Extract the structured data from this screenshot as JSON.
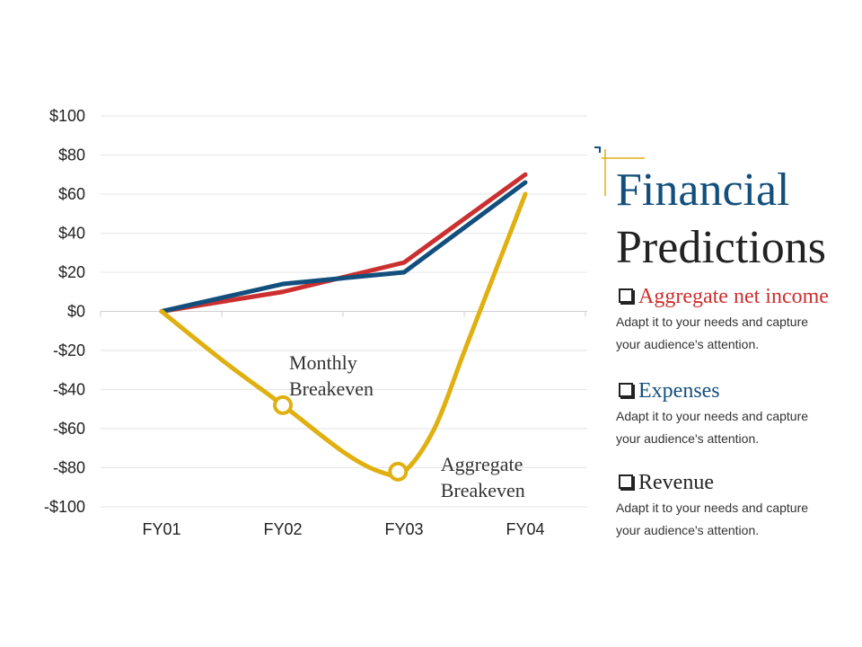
{
  "colors": {
    "revenue": "#134f7c",
    "net_income": "#cc2f2f",
    "expenses": "#e0b010",
    "title_blue": "#134f7c",
    "title_dark": "#222222",
    "gold": "#e0b010",
    "grid": "#e6e6e6"
  },
  "title": {
    "line1": "Financial",
    "line2": "Predictions"
  },
  "legend": [
    {
      "key": "net_income",
      "label": "Aggregate net income",
      "description": "Adapt it to your needs and capture your audience's attention.",
      "icon": "checkbox-icon"
    },
    {
      "key": "expenses",
      "label": "Expenses",
      "description": "Adapt it to your needs and capture your audience's attention.",
      "icon": "checkbox-icon"
    },
    {
      "key": "revenue",
      "label": "Revenue",
      "description": "Adapt it to your needs and capture your audience's attention.",
      "icon": "checkbox-icon"
    }
  ],
  "chart_data": {
    "type": "line",
    "categories": [
      "FY01",
      "FY02",
      "FY03",
      "FY04"
    ],
    "ylim": [
      -100,
      100
    ],
    "y_ticks": [
      100,
      80,
      60,
      40,
      20,
      0,
      -20,
      -40,
      -60,
      -80,
      -100
    ],
    "y_tick_labels": [
      "$100",
      "$80",
      "$60",
      "$40",
      "$20",
      "$0",
      "-$20",
      "-$40",
      "-$60",
      "-$80",
      "-$100"
    ],
    "grid": true,
    "series": [
      {
        "key": "net_income",
        "x": [
          1,
          2,
          3,
          4
        ],
        "values": [
          0,
          10,
          25,
          70
        ]
      },
      {
        "key": "revenue",
        "x": [
          1,
          2,
          3,
          4
        ],
        "values": [
          0,
          14,
          20,
          66
        ]
      },
      {
        "key": "expenses",
        "smooth": true,
        "x": [
          1,
          1.5,
          2,
          2.5,
          2.8,
          3,
          3.25,
          3.5,
          3.75,
          4
        ],
        "values": [
          0,
          -25,
          -48,
          -72,
          -82,
          -82,
          -60,
          -20,
          20,
          60
        ]
      }
    ],
    "markers": [
      {
        "series": "expenses",
        "x": 2,
        "y": -48
      },
      {
        "series": "expenses",
        "x": 2.95,
        "y": -82
      }
    ],
    "annotations": [
      {
        "lines": [
          "Monthly",
          "Breakeven"
        ],
        "anchor_x": 2,
        "anchor_y": -25
      },
      {
        "lines": [
          "Aggregate",
          "Breakeven"
        ],
        "anchor_x": 3.25,
        "anchor_y": -77
      }
    ]
  }
}
